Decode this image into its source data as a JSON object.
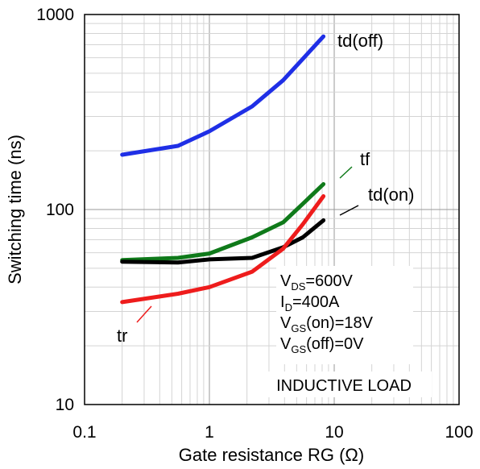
{
  "chart_data": {
    "type": "line",
    "x_scale": "log",
    "y_scale": "log",
    "xlabel": "Gate resistance RG (Ω)",
    "ylabel": "Switching time (ns)",
    "xlim": [
      0.1,
      100
    ],
    "ylim": [
      10,
      1000
    ],
    "x_ticks": [
      {
        "value": 0.1,
        "label": "0.1"
      },
      {
        "value": 1,
        "label": "1"
      },
      {
        "value": 10,
        "label": "10"
      },
      {
        "value": 100,
        "label": "100"
      }
    ],
    "y_ticks": [
      {
        "value": 10,
        "label": "10"
      },
      {
        "value": 100,
        "label": "100"
      },
      {
        "value": 1000,
        "label": "1000"
      }
    ],
    "grid": true,
    "series": [
      {
        "name": "td(off)",
        "color": "#1f2fe6",
        "points": [
          [
            0.2,
            191
          ],
          [
            0.56,
            212
          ],
          [
            1.0,
            252
          ],
          [
            2.2,
            338
          ],
          [
            3.9,
            460
          ],
          [
            8.2,
            772
          ]
        ]
      },
      {
        "name": "tf",
        "color": "#0f7a1a",
        "points": [
          [
            0.2,
            55
          ],
          [
            0.56,
            56.5
          ],
          [
            1.0,
            59.5
          ],
          [
            2.2,
            72
          ],
          [
            3.9,
            86
          ],
          [
            5.6,
            107
          ],
          [
            8.2,
            135
          ]
        ]
      },
      {
        "name": "td(on)",
        "color": "#000000",
        "points": [
          [
            0.2,
            54
          ],
          [
            0.56,
            53.5
          ],
          [
            1.0,
            55.5
          ],
          [
            2.2,
            56.5
          ],
          [
            3.9,
            64
          ],
          [
            5.6,
            72
          ],
          [
            8.2,
            88
          ]
        ]
      },
      {
        "name": "tr",
        "color": "#ee1c1c",
        "points": [
          [
            0.2,
            33.5
          ],
          [
            0.56,
            37
          ],
          [
            1.0,
            40
          ],
          [
            2.2,
            48
          ],
          [
            3.9,
            63
          ],
          [
            5.6,
            84
          ],
          [
            8.2,
            117
          ]
        ]
      }
    ],
    "conditions": [
      {
        "main": "V",
        "sub": "DS",
        "rest": "=600V"
      },
      {
        "main": "I",
        "sub": "D",
        "rest": "=400A"
      },
      {
        "main": "V",
        "sub": "GS",
        "rest": "(on)=18V"
      },
      {
        "main": "V",
        "sub": "GS",
        "rest": "(off)=0V"
      }
    ],
    "note": "INDUCTIVE LOAD"
  }
}
